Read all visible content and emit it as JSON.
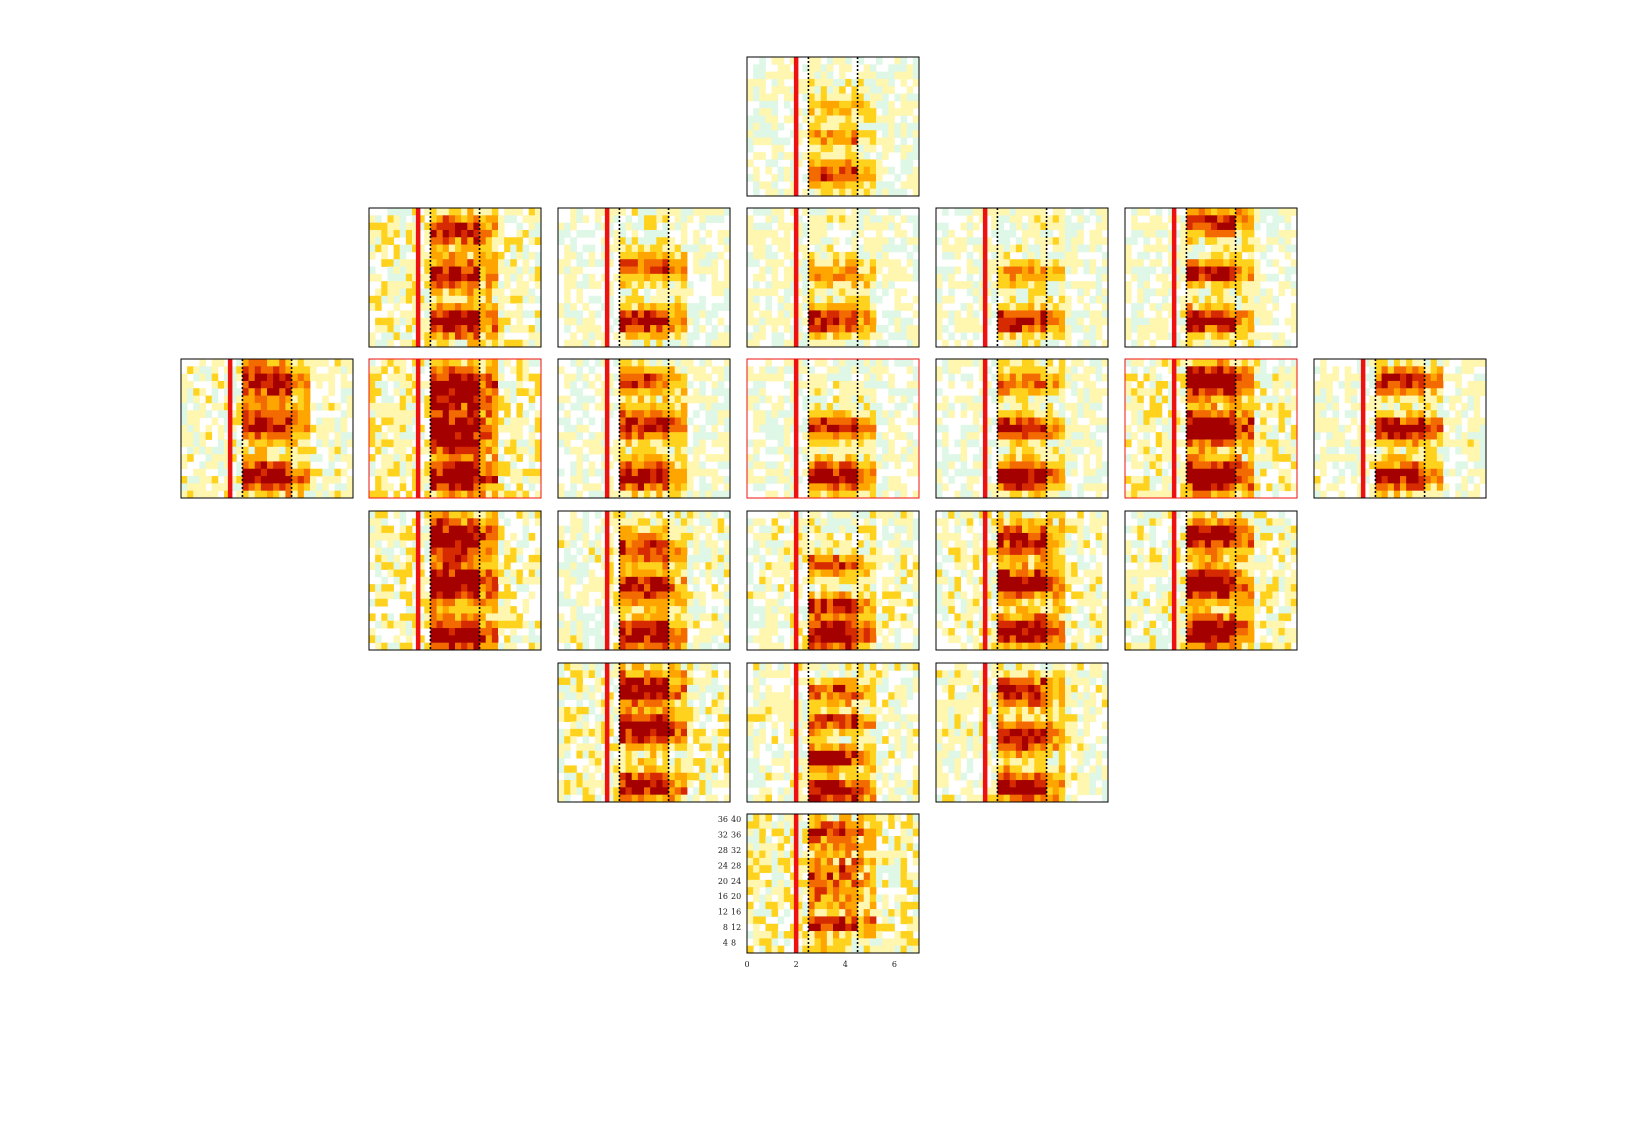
{
  "chart_data": {
    "type": "heatmap",
    "title": "",
    "xlabel": "",
    "ylabel": "",
    "layout": "electrode-montage-grid",
    "colormap": [
      "#ffffff",
      "#dff7e6",
      "#fff6b0",
      "#ffd21e",
      "#ffa500",
      "#f26a00",
      "#d62a00",
      "#a50000"
    ],
    "x_range": [
      0,
      7
    ],
    "x_ticks": [
      "0",
      "2",
      "4",
      "6"
    ],
    "y_range": [
      2,
      40
    ],
    "y_ticks_left": [
      "36",
      "32",
      "28",
      "24",
      "20",
      "16",
      "12",
      "8",
      "4"
    ],
    "y_ticks_right": [
      "40",
      "36",
      "32",
      "28",
      "24",
      "20",
      "16",
      "12",
      "8"
    ],
    "cue_line_x": 2.0,
    "window_lines_x": [
      2.5,
      4.5
    ],
    "cue_line_color": "#ee1111",
    "window_line_color": "#000000",
    "highlight_border_color": "#ee1111",
    "panels": [
      {
        "row": 0,
        "col": 3,
        "highlight": false,
        "base": 0.22,
        "seed": 11,
        "bands": [
          {
            "y": 8,
            "w": 2.5,
            "a": 0.8
          },
          {
            "y": 18,
            "w": 2,
            "a": 0.5
          },
          {
            "y": 26,
            "w": 2,
            "a": 0.35
          }
        ]
      },
      {
        "row": 1,
        "col": 1,
        "highlight": false,
        "base": 0.3,
        "seed": 21,
        "bands": [
          {
            "y": 9,
            "w": 3,
            "a": 1.0
          },
          {
            "y": 22,
            "w": 3,
            "a": 0.85
          },
          {
            "y": 34,
            "w": 3,
            "a": 0.8
          }
        ]
      },
      {
        "row": 1,
        "col": 2,
        "highlight": false,
        "base": 0.22,
        "seed": 22,
        "bands": [
          {
            "y": 9,
            "w": 2.5,
            "a": 1.0
          },
          {
            "y": 24,
            "w": 2.5,
            "a": 0.75
          }
        ]
      },
      {
        "row": 1,
        "col": 3,
        "highlight": false,
        "base": 0.22,
        "seed": 23,
        "bands": [
          {
            "y": 9,
            "w": 2.5,
            "a": 0.95
          },
          {
            "y": 22,
            "w": 2.5,
            "a": 0.5
          }
        ]
      },
      {
        "row": 1,
        "col": 4,
        "highlight": false,
        "base": 0.22,
        "seed": 24,
        "bands": [
          {
            "y": 9,
            "w": 2.5,
            "a": 0.95
          },
          {
            "y": 22,
            "w": 2.5,
            "a": 0.45
          }
        ]
      },
      {
        "row": 1,
        "col": 5,
        "highlight": false,
        "base": 0.24,
        "seed": 25,
        "bands": [
          {
            "y": 9,
            "w": 2.5,
            "a": 1.05
          },
          {
            "y": 22,
            "w": 2,
            "a": 0.95
          },
          {
            "y": 36,
            "w": 2.5,
            "a": 0.9
          }
        ]
      },
      {
        "row": 2,
        "col": 0,
        "highlight": false,
        "base": 0.26,
        "seed": 31,
        "bands": [
          {
            "y": 8,
            "w": 3,
            "a": 1.05
          },
          {
            "y": 22,
            "w": 3,
            "a": 1.0
          },
          {
            "y": 34,
            "w": 3.5,
            "a": 0.95
          }
        ]
      },
      {
        "row": 2,
        "col": 1,
        "highlight": true,
        "base": 0.32,
        "seed": 32,
        "bands": [
          {
            "y": 8,
            "w": 3,
            "a": 1.1
          },
          {
            "y": 20,
            "w": 4,
            "a": 1.05
          },
          {
            "y": 32,
            "w": 4,
            "a": 1.05
          }
        ]
      },
      {
        "row": 2,
        "col": 2,
        "highlight": false,
        "base": 0.22,
        "seed": 33,
        "bands": [
          {
            "y": 8,
            "w": 3,
            "a": 1.0
          },
          {
            "y": 22,
            "w": 3,
            "a": 0.95
          },
          {
            "y": 34,
            "w": 2.5,
            "a": 0.8
          }
        ]
      },
      {
        "row": 2,
        "col": 3,
        "highlight": true,
        "base": 0.2,
        "seed": 34,
        "bands": [
          {
            "y": 8,
            "w": 3,
            "a": 1.0
          },
          {
            "y": 21,
            "w": 2.5,
            "a": 0.9
          }
        ]
      },
      {
        "row": 2,
        "col": 4,
        "highlight": false,
        "base": 0.22,
        "seed": 35,
        "bands": [
          {
            "y": 8,
            "w": 3,
            "a": 0.95
          },
          {
            "y": 21,
            "w": 2.5,
            "a": 0.95
          },
          {
            "y": 33,
            "w": 2.5,
            "a": 0.6
          }
        ]
      },
      {
        "row": 2,
        "col": 5,
        "highlight": true,
        "base": 0.3,
        "seed": 36,
        "bands": [
          {
            "y": 8,
            "w": 3,
            "a": 1.25
          },
          {
            "y": 21,
            "w": 3,
            "a": 1.25
          },
          {
            "y": 34,
            "w": 3,
            "a": 1.2
          }
        ]
      },
      {
        "row": 2,
        "col": 6,
        "highlight": false,
        "base": 0.24,
        "seed": 37,
        "bands": [
          {
            "y": 8,
            "w": 3,
            "a": 0.95
          },
          {
            "y": 21,
            "w": 2.5,
            "a": 1.05
          },
          {
            "y": 34,
            "w": 2.5,
            "a": 0.95
          }
        ]
      },
      {
        "row": 3,
        "col": 1,
        "highlight": false,
        "base": 0.3,
        "seed": 41,
        "bands": [
          {
            "y": 6,
            "w": 3,
            "a": 1.05
          },
          {
            "y": 20,
            "w": 4,
            "a": 1.0
          },
          {
            "y": 33,
            "w": 4,
            "a": 0.95
          }
        ]
      },
      {
        "row": 3,
        "col": 2,
        "highlight": false,
        "base": 0.26,
        "seed": 42,
        "bands": [
          {
            "y": 6,
            "w": 3,
            "a": 1.0
          },
          {
            "y": 19,
            "w": 3,
            "a": 0.85
          },
          {
            "y": 30,
            "w": 3,
            "a": 0.7
          }
        ]
      },
      {
        "row": 3,
        "col": 3,
        "highlight": false,
        "base": 0.26,
        "seed": 43,
        "bands": [
          {
            "y": 6,
            "w": 3,
            "a": 1.0
          },
          {
            "y": 14,
            "w": 2,
            "a": 0.85
          },
          {
            "y": 25,
            "w": 2,
            "a": 0.65
          }
        ]
      },
      {
        "row": 3,
        "col": 4,
        "highlight": false,
        "base": 0.28,
        "seed": 44,
        "bands": [
          {
            "y": 7,
            "w": 3,
            "a": 1.0
          },
          {
            "y": 20,
            "w": 3,
            "a": 0.95
          },
          {
            "y": 32,
            "w": 3,
            "a": 0.8
          }
        ]
      },
      {
        "row": 3,
        "col": 5,
        "highlight": false,
        "base": 0.28,
        "seed": 45,
        "bands": [
          {
            "y": 7,
            "w": 3,
            "a": 1.15
          },
          {
            "y": 20,
            "w": 3,
            "a": 1.1
          },
          {
            "y": 33,
            "w": 3,
            "a": 1.0
          }
        ]
      },
      {
        "row": 4,
        "col": 2,
        "highlight": false,
        "base": 0.3,
        "seed": 51,
        "bands": [
          {
            "y": 6,
            "w": 3,
            "a": 0.9
          },
          {
            "y": 22,
            "w": 3,
            "a": 1.0
          },
          {
            "y": 33,
            "w": 3,
            "a": 1.0
          }
        ]
      },
      {
        "row": 4,
        "col": 3,
        "highlight": false,
        "base": 0.26,
        "seed": 52,
        "bands": [
          {
            "y": 5,
            "w": 2.5,
            "a": 1.0
          },
          {
            "y": 14,
            "w": 2,
            "a": 0.95
          },
          {
            "y": 24,
            "w": 2,
            "a": 0.8
          },
          {
            "y": 32,
            "w": 2,
            "a": 0.7
          }
        ]
      },
      {
        "row": 4,
        "col": 4,
        "highlight": false,
        "base": 0.26,
        "seed": 53,
        "bands": [
          {
            "y": 6,
            "w": 3,
            "a": 0.9
          },
          {
            "y": 20,
            "w": 3,
            "a": 0.95
          },
          {
            "y": 32,
            "w": 3,
            "a": 0.85
          }
        ]
      },
      {
        "row": 5,
        "col": 3,
        "highlight": false,
        "base": 0.34,
        "seed": 61,
        "bands": [
          {
            "y": 10,
            "w": 1.5,
            "a": 0.75
          },
          {
            "y": 22,
            "w": 6,
            "a": 0.5
          },
          {
            "y": 35,
            "w": 2,
            "a": 0.6
          }
        ]
      }
    ]
  }
}
